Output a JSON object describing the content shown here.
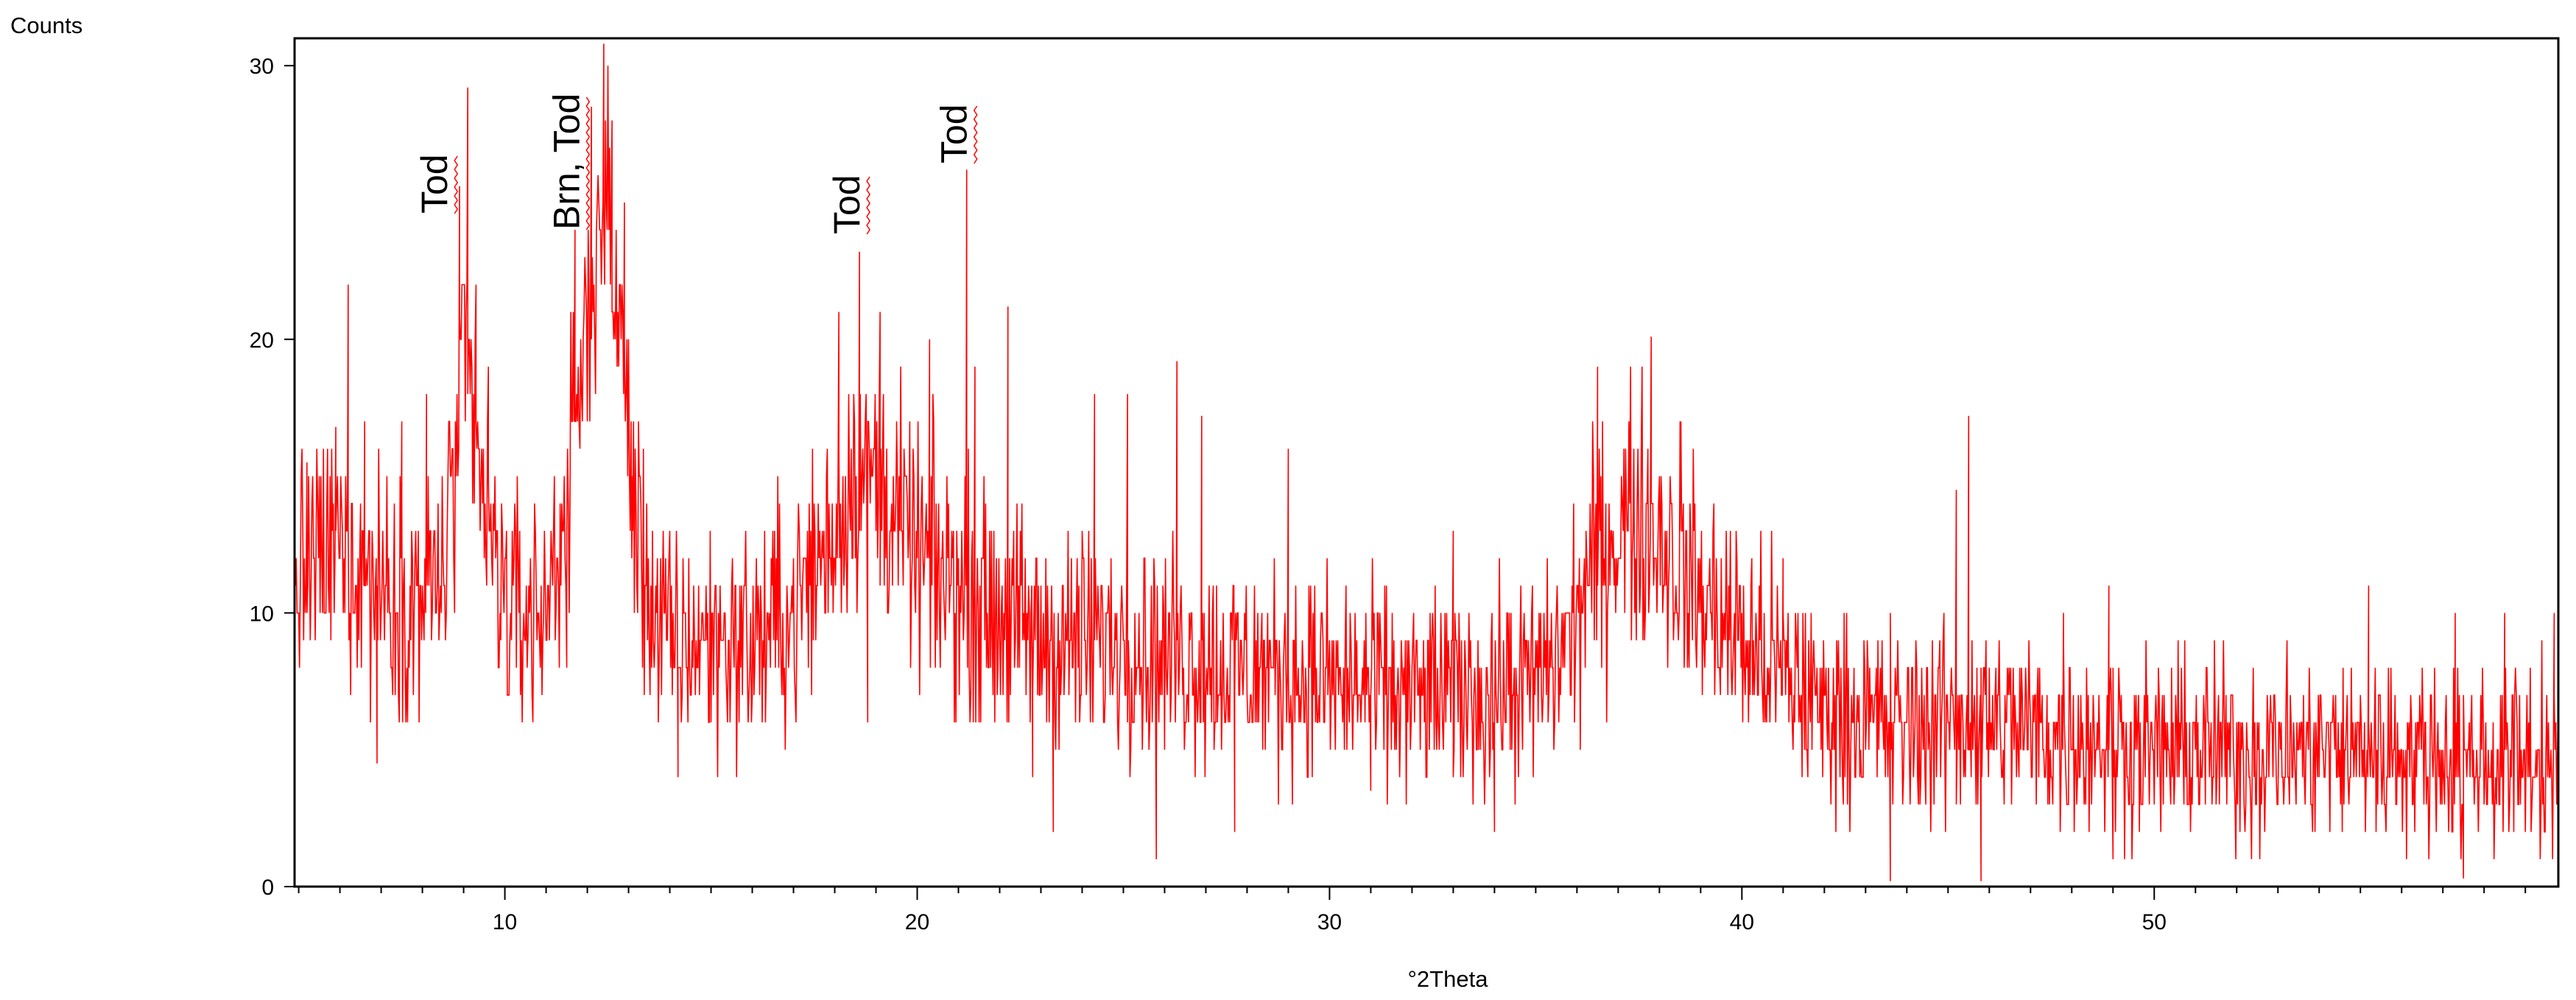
{
  "chart_data": {
    "type": "line",
    "title": "",
    "ylabel": "Counts",
    "xlabel": "°2Theta",
    "xlim": [
      4.9,
      59.8
    ],
    "ylim": [
      0,
      31
    ],
    "x_ticks": [
      10,
      20,
      30,
      40,
      50
    ],
    "y_ticks": [
      0,
      10,
      20,
      30
    ],
    "grid": false,
    "legend": "none",
    "line_color": "#ff0000",
    "annotations": [
      {
        "text": "Tod",
        "x": 8.6
      },
      {
        "text": "Brn, Tod",
        "x": 11.8
      },
      {
        "text": "Tod",
        "x": 18.6
      },
      {
        "text": "Tod",
        "x": 21.2
      }
    ],
    "series": [
      {
        "profile": {
          "x": [
            4.9,
            5.5,
            6.0,
            7.0,
            8.0,
            8.5,
            8.8,
            9.0,
            9.3,
            9.7,
            10.2,
            11.0,
            11.3,
            11.7,
            12.0,
            12.3,
            12.5,
            12.8,
            13.2,
            13.6,
            14.0,
            15.0,
            16.0,
            17.0,
            17.8,
            18.5,
            19.0,
            19.5,
            20.0,
            21.0,
            22.0,
            23.0,
            24.0,
            25.0,
            26.0,
            28.0,
            30.0,
            32.0,
            34.0,
            35.0,
            35.8,
            36.5,
            37.2,
            38.0,
            39.0,
            40.0,
            42.0,
            44.0,
            46.0,
            48.0,
            50.0,
            55.0,
            59.8
          ],
          "y": [
            11.0,
            12.0,
            12.5,
            11.0,
            10.5,
            11.5,
            15.0,
            19.0,
            16.0,
            12.0,
            10.0,
            10.0,
            12.5,
            16.0,
            21.0,
            24.0,
            24.5,
            20.0,
            13.0,
            10.0,
            9.0,
            9.0,
            9.0,
            10.0,
            12.5,
            15.0,
            15.0,
            13.5,
            12.0,
            11.0,
            10.0,
            9.0,
            9.0,
            9.0,
            8.5,
            8.0,
            7.5,
            7.0,
            7.0,
            7.5,
            9.0,
            12.0,
            13.5,
            13.0,
            10.5,
            9.0,
            6.5,
            6.0,
            6.0,
            5.5,
            5.0,
            5.0,
            4.5
          ]
        },
        "noise_amplitude": 5.0,
        "spikes": [
          {
            "x": 5.2,
            "y": 15.5
          },
          {
            "x": 5.9,
            "y": 16.8
          },
          {
            "x": 6.2,
            "y": 22.0
          },
          {
            "x": 6.6,
            "y": 17.0
          },
          {
            "x": 6.9,
            "y": 4.5
          },
          {
            "x": 7.5,
            "y": 17.0
          },
          {
            "x": 8.1,
            "y": 18.0
          },
          {
            "x": 8.9,
            "y": 25.6
          },
          {
            "x": 9.1,
            "y": 29.2
          },
          {
            "x": 9.3,
            "y": 22.0
          },
          {
            "x": 9.6,
            "y": 19.0
          },
          {
            "x": 11.5,
            "y": 8.0
          },
          {
            "x": 11.7,
            "y": 24.0
          },
          {
            "x": 12.1,
            "y": 28.5
          },
          {
            "x": 12.4,
            "y": 30.8
          },
          {
            "x": 12.6,
            "y": 28.0
          },
          {
            "x": 12.9,
            "y": 25.0
          },
          {
            "x": 13.1,
            "y": 15.0
          },
          {
            "x": 14.2,
            "y": 4.0
          },
          {
            "x": 16.8,
            "y": 5.0
          },
          {
            "x": 18.1,
            "y": 21.0
          },
          {
            "x": 18.6,
            "y": 23.2
          },
          {
            "x": 18.8,
            "y": 6.0
          },
          {
            "x": 19.1,
            "y": 21.0
          },
          {
            "x": 19.5,
            "y": 16.5
          },
          {
            "x": 20.3,
            "y": 20.0
          },
          {
            "x": 21.2,
            "y": 26.2
          },
          {
            "x": 21.4,
            "y": 19.0
          },
          {
            "x": 22.2,
            "y": 21.2
          },
          {
            "x": 22.8,
            "y": 4.0
          },
          {
            "x": 23.3,
            "y": 2.0
          },
          {
            "x": 24.3,
            "y": 18.0
          },
          {
            "x": 25.1,
            "y": 18.0
          },
          {
            "x": 25.8,
            "y": 1.0
          },
          {
            "x": 26.3,
            "y": 19.2
          },
          {
            "x": 26.9,
            "y": 17.2
          },
          {
            "x": 27.7,
            "y": 2.0
          },
          {
            "x": 29.0,
            "y": 16.0
          },
          {
            "x": 31.0,
            "y": 3.5
          },
          {
            "x": 33.0,
            "y": 13.0
          },
          {
            "x": 34.0,
            "y": 2.0
          },
          {
            "x": 36.5,
            "y": 19.0
          },
          {
            "x": 37.8,
            "y": 20.1
          },
          {
            "x": 38.5,
            "y": 17.0
          },
          {
            "x": 41.0,
            "y": 12.0
          },
          {
            "x": 43.6,
            "y": 0.2
          },
          {
            "x": 45.2,
            "y": 14.5
          },
          {
            "x": 45.5,
            "y": 17.2
          },
          {
            "x": 45.8,
            "y": 0.2
          },
          {
            "x": 47.8,
            "y": 10.0
          },
          {
            "x": 48.9,
            "y": 11.0
          },
          {
            "x": 49.0,
            "y": 1.0
          },
          {
            "x": 55.2,
            "y": 11.0
          },
          {
            "x": 57.3,
            "y": 10.0
          },
          {
            "x": 57.5,
            "y": 0.3
          },
          {
            "x": 58.5,
            "y": 10.0
          },
          {
            "x": 59.7,
            "y": 10.0
          }
        ]
      }
    ]
  }
}
